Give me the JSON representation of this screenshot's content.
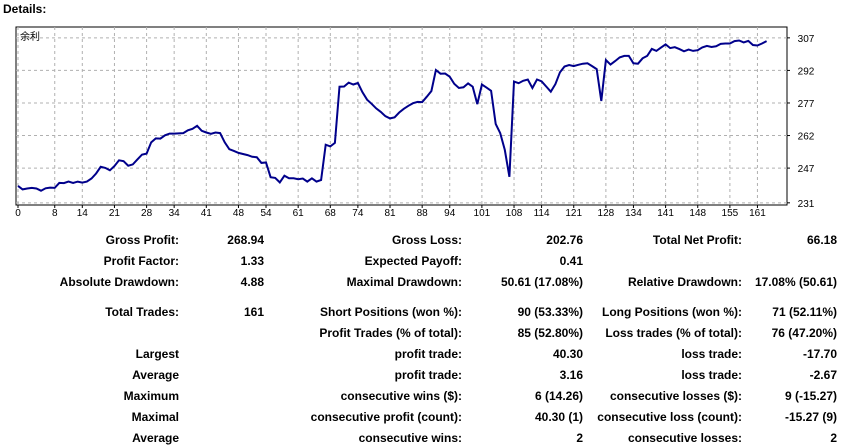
{
  "header": {
    "title": "Details:"
  },
  "chart_data": {
    "type": "line",
    "title": "",
    "xlabel": "",
    "ylabel": "",
    "logo_text": "余利",
    "x_ticks": [
      0,
      8,
      14,
      21,
      28,
      34,
      41,
      48,
      54,
      61,
      68,
      74,
      81,
      88,
      94,
      101,
      108,
      114,
      121,
      128,
      134,
      141,
      148,
      155,
      161
    ],
    "y_ticks": [
      231,
      247,
      262,
      277,
      292,
      307
    ],
    "xlim": [
      0,
      167
    ],
    "ylim": [
      230,
      312
    ],
    "grid": true,
    "line_color": "#00008B",
    "series": [
      {
        "x": [
          0,
          1,
          2,
          3,
          4,
          5,
          6,
          7,
          8,
          9,
          10,
          11,
          12,
          13,
          14,
          15,
          16,
          17,
          18,
          19,
          20,
          21,
          22,
          23,
          24,
          25,
          26,
          27,
          28,
          29,
          30,
          31,
          32,
          33,
          34,
          35,
          36,
          37,
          38,
          39,
          40,
          41,
          42,
          43,
          44,
          45,
          46,
          47,
          48,
          49,
          50,
          51,
          52,
          53,
          54,
          55,
          56,
          57,
          58,
          59,
          60,
          61,
          62,
          63,
          64,
          65,
          66,
          67,
          68,
          69,
          70,
          71,
          72,
          73,
          74,
          75,
          76,
          77,
          78,
          79,
          80,
          81,
          82,
          83,
          84,
          85,
          86,
          87,
          88,
          89,
          90,
          91,
          92,
          93,
          94,
          95,
          96,
          97,
          98,
          99,
          100,
          101,
          102,
          103,
          104,
          105,
          106,
          107,
          108,
          109,
          110,
          111,
          112,
          113,
          114,
          115,
          116,
          117,
          118,
          119,
          120,
          121,
          122,
          123,
          124,
          125,
          126,
          127,
          128,
          129,
          130,
          131,
          132,
          133,
          134,
          135,
          136,
          137,
          138,
          139,
          140,
          141,
          142,
          143,
          144,
          145,
          146,
          147,
          148,
          149,
          150,
          151,
          152,
          153,
          154,
          155,
          156,
          157,
          158,
          159,
          160,
          161,
          162,
          163
        ],
        "values": [
          238.8,
          237.2,
          237.6,
          237.9,
          237.6,
          236.6,
          237.7,
          238.0,
          237.9,
          240.2,
          240.1,
          240.8,
          240.2,
          240.8,
          240.3,
          240.8,
          242.2,
          244.5,
          247.6,
          247.1,
          246.0,
          247.9,
          250.6,
          250.2,
          248.1,
          248.7,
          251.0,
          253.2,
          253.7,
          258.9,
          260.7,
          260.6,
          262.1,
          262.9,
          262.9,
          263.0,
          263.1,
          264.4,
          265.1,
          266.5,
          264.2,
          263.4,
          262.8,
          263.4,
          263.1,
          258.9,
          255.7,
          254.9,
          254.0,
          253.5,
          253.0,
          252.2,
          252.0,
          249.4,
          249.6,
          242.8,
          242.5,
          240.4,
          243.5,
          242.3,
          242.3,
          241.9,
          242.2,
          240.8,
          242.3,
          240.8,
          241.5,
          257.8,
          257.0,
          258.6,
          284.5,
          284.6,
          286.4,
          285.5,
          286.2,
          281.9,
          278.5,
          276.6,
          274.5,
          272.9,
          270.9,
          269.9,
          270.4,
          272.6,
          274.3,
          275.7,
          276.9,
          277.5,
          277.4,
          279.9,
          282.5,
          292.2,
          290.5,
          290.6,
          289.1,
          285.8,
          283.9,
          284.2,
          286.0,
          284.5,
          276.5,
          285.5,
          284.1,
          282.6,
          267.3,
          263.1,
          255.4,
          243.0,
          286.9,
          286.1,
          287.2,
          287.8,
          283.9,
          287.8,
          287.0,
          284.6,
          282.2,
          285.7,
          291.2,
          293.8,
          294.5,
          294.0,
          294.6,
          295.1,
          295.3,
          294.0,
          292.6,
          277.9,
          296.8,
          294.7,
          296.3,
          298.0,
          298.7,
          298.7,
          295.3,
          295.1,
          297.6,
          298.7,
          301.9,
          301.0,
          302.5,
          304.0,
          302.3,
          302.7,
          301.8,
          300.8,
          301.6,
          301.0,
          301.3,
          302.6,
          303.3,
          302.8,
          303.1,
          304.2,
          304.4,
          304.4,
          305.5,
          305.8,
          304.9,
          305.6,
          303.7,
          303.5,
          304.4,
          305.5
        ]
      }
    ]
  },
  "stats": {
    "gross_profit": {
      "label": "Gross Profit:",
      "value": "268.94"
    },
    "gross_loss": {
      "label": "Gross Loss:",
      "value": "202.76"
    },
    "total_net_profit": {
      "label": "Total Net Profit:",
      "value": "66.18"
    },
    "profit_factor": {
      "label": "Profit Factor:",
      "value": "1.33"
    },
    "expected_payoff": {
      "label": "Expected Payoff:",
      "value": "0.41"
    },
    "absolute_drawdown": {
      "label": "Absolute Drawdown:",
      "value": "4.88"
    },
    "maximal_drawdown": {
      "label": "Maximal Drawdown:",
      "value": "50.61 (17.08%)"
    },
    "relative_drawdown": {
      "label": "Relative Drawdown:",
      "value": "17.08% (50.61)"
    },
    "total_trades": {
      "label": "Total Trades:",
      "value": "161"
    },
    "short_positions": {
      "label": "Short Positions (won %):",
      "value": "90 (53.33%)"
    },
    "long_positions": {
      "label": "Long Positions (won %):",
      "value": "71 (52.11%)"
    },
    "profit_trades": {
      "label": "Profit Trades (% of total):",
      "value": "85 (52.80%)"
    },
    "loss_trades": {
      "label": "Loss trades (% of total):",
      "value": "76 (47.20%)"
    },
    "largest": {
      "label": "Largest"
    },
    "largest_profit": {
      "label": "profit trade:",
      "value": "40.30"
    },
    "largest_loss": {
      "label": "loss trade:",
      "value": "-17.70"
    },
    "average": {
      "label": "Average"
    },
    "average_profit": {
      "label": "profit trade:",
      "value": "3.16"
    },
    "average_loss": {
      "label": "loss trade:",
      "value": "-2.67"
    },
    "maximum": {
      "label": "Maximum"
    },
    "max_consec_wins": {
      "label": "consecutive wins ($):",
      "value": "6 (14.26)"
    },
    "max_consec_losses": {
      "label": "consecutive losses ($):",
      "value": "9 (-15.27)"
    },
    "maximal": {
      "label": "Maximal"
    },
    "maximal_consec_profit": {
      "label": "consecutive profit (count):",
      "value": "40.30 (1)"
    },
    "maximal_consec_loss": {
      "label": "consecutive loss (count):",
      "value": "-15.27 (9)"
    },
    "average2": {
      "label": "Average"
    },
    "avg_consec_wins": {
      "label": "consecutive wins:",
      "value": "2"
    },
    "avg_consec_losses": {
      "label": "consecutive losses:",
      "value": "2"
    }
  }
}
